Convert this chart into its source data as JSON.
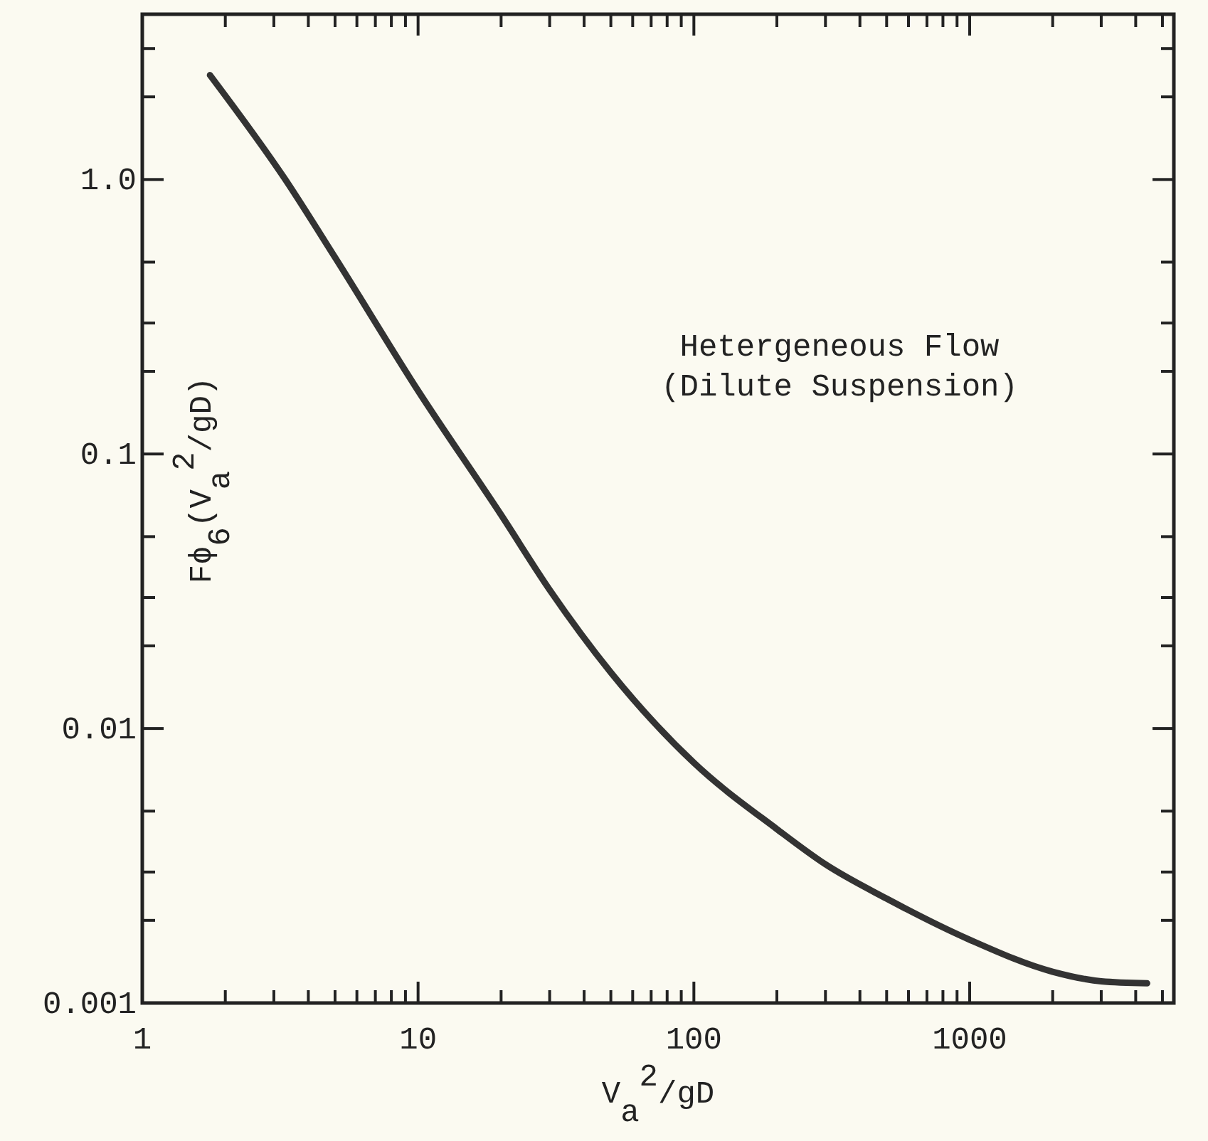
{
  "chart_data": {
    "type": "line",
    "xlabel": "V$_{a}$$^{2}$/gD",
    "ylabel": "Fϕ$_{6}$(V$_{a}$$^{2}$/gD)",
    "annotations": [
      "Hetergeneous Flow",
      "(Dilute Suspension)"
    ],
    "log": "xy",
    "xlim": [
      1,
      5500
    ],
    "ylim": [
      0.001,
      4
    ],
    "xticks": [
      1,
      {
        "value": 2,
        "label": null
      },
      {
        "value": 3,
        "label": null
      },
      {
        "value": 4,
        "label": null
      },
      {
        "value": 5,
        "label": null
      },
      {
        "value": 6,
        "label": null
      },
      {
        "value": 7,
        "label": null
      },
      {
        "value": 8,
        "label": null
      },
      {
        "value": 9,
        "label": null
      },
      10,
      {
        "value": 20,
        "label": null
      },
      {
        "value": 30,
        "label": null
      },
      {
        "value": 40,
        "label": null
      },
      {
        "value": 50,
        "label": null
      },
      {
        "value": 60,
        "label": null
      },
      {
        "value": 70,
        "label": null
      },
      {
        "value": 80,
        "label": null
      },
      {
        "value": 90,
        "label": null
      },
      100,
      {
        "value": 200,
        "label": null
      },
      {
        "value": 300,
        "label": null
      },
      {
        "value": 400,
        "label": null
      },
      {
        "value": 500,
        "label": null
      },
      {
        "value": 600,
        "label": null
      },
      {
        "value": 700,
        "label": null
      },
      {
        "value": 800,
        "label": null
      },
      {
        "value": 900,
        "label": null
      },
      1000,
      {
        "value": 2000,
        "label": null
      },
      {
        "value": 3000,
        "label": null
      },
      {
        "value": 4000,
        "label": null
      },
      {
        "value": 5000,
        "label": null
      }
    ],
    "yticks": [
      0.001,
      {
        "value": 0.002,
        "label": null
      },
      {
        "value": 0.003,
        "label": null
      },
      {
        "value": 0.005,
        "label": null
      },
      0.01,
      {
        "value": 0.02,
        "label": null
      },
      {
        "value": 0.03,
        "label": null
      },
      {
        "value": 0.05,
        "label": null
      },
      0.1,
      {
        "value": 0.2,
        "label": null
      },
      {
        "value": 0.3,
        "label": null
      },
      {
        "value": 0.5,
        "label": null
      },
      {
        "value": 1,
        "label": "1.0"
      },
      {
        "value": 2,
        "label": null
      },
      {
        "value": 3,
        "label": null
      }
    ],
    "grid": false,
    "marker": "none",
    "line_style": "solid",
    "series": [
      {
        "color": "#333333",
        "x": [
          1.76,
          3.3,
          5,
          10,
          20,
          30,
          50,
          100,
          200,
          300,
          500,
          1000,
          2000,
          3000,
          4400
        ],
        "values": [
          2.4,
          1.0,
          0.52,
          0.17,
          0.06,
          0.032,
          0.016,
          0.0075,
          0.0043,
          0.0032,
          0.0024,
          0.0017,
          0.0013,
          0.0012,
          0.00118
        ]
      }
    ]
  }
}
